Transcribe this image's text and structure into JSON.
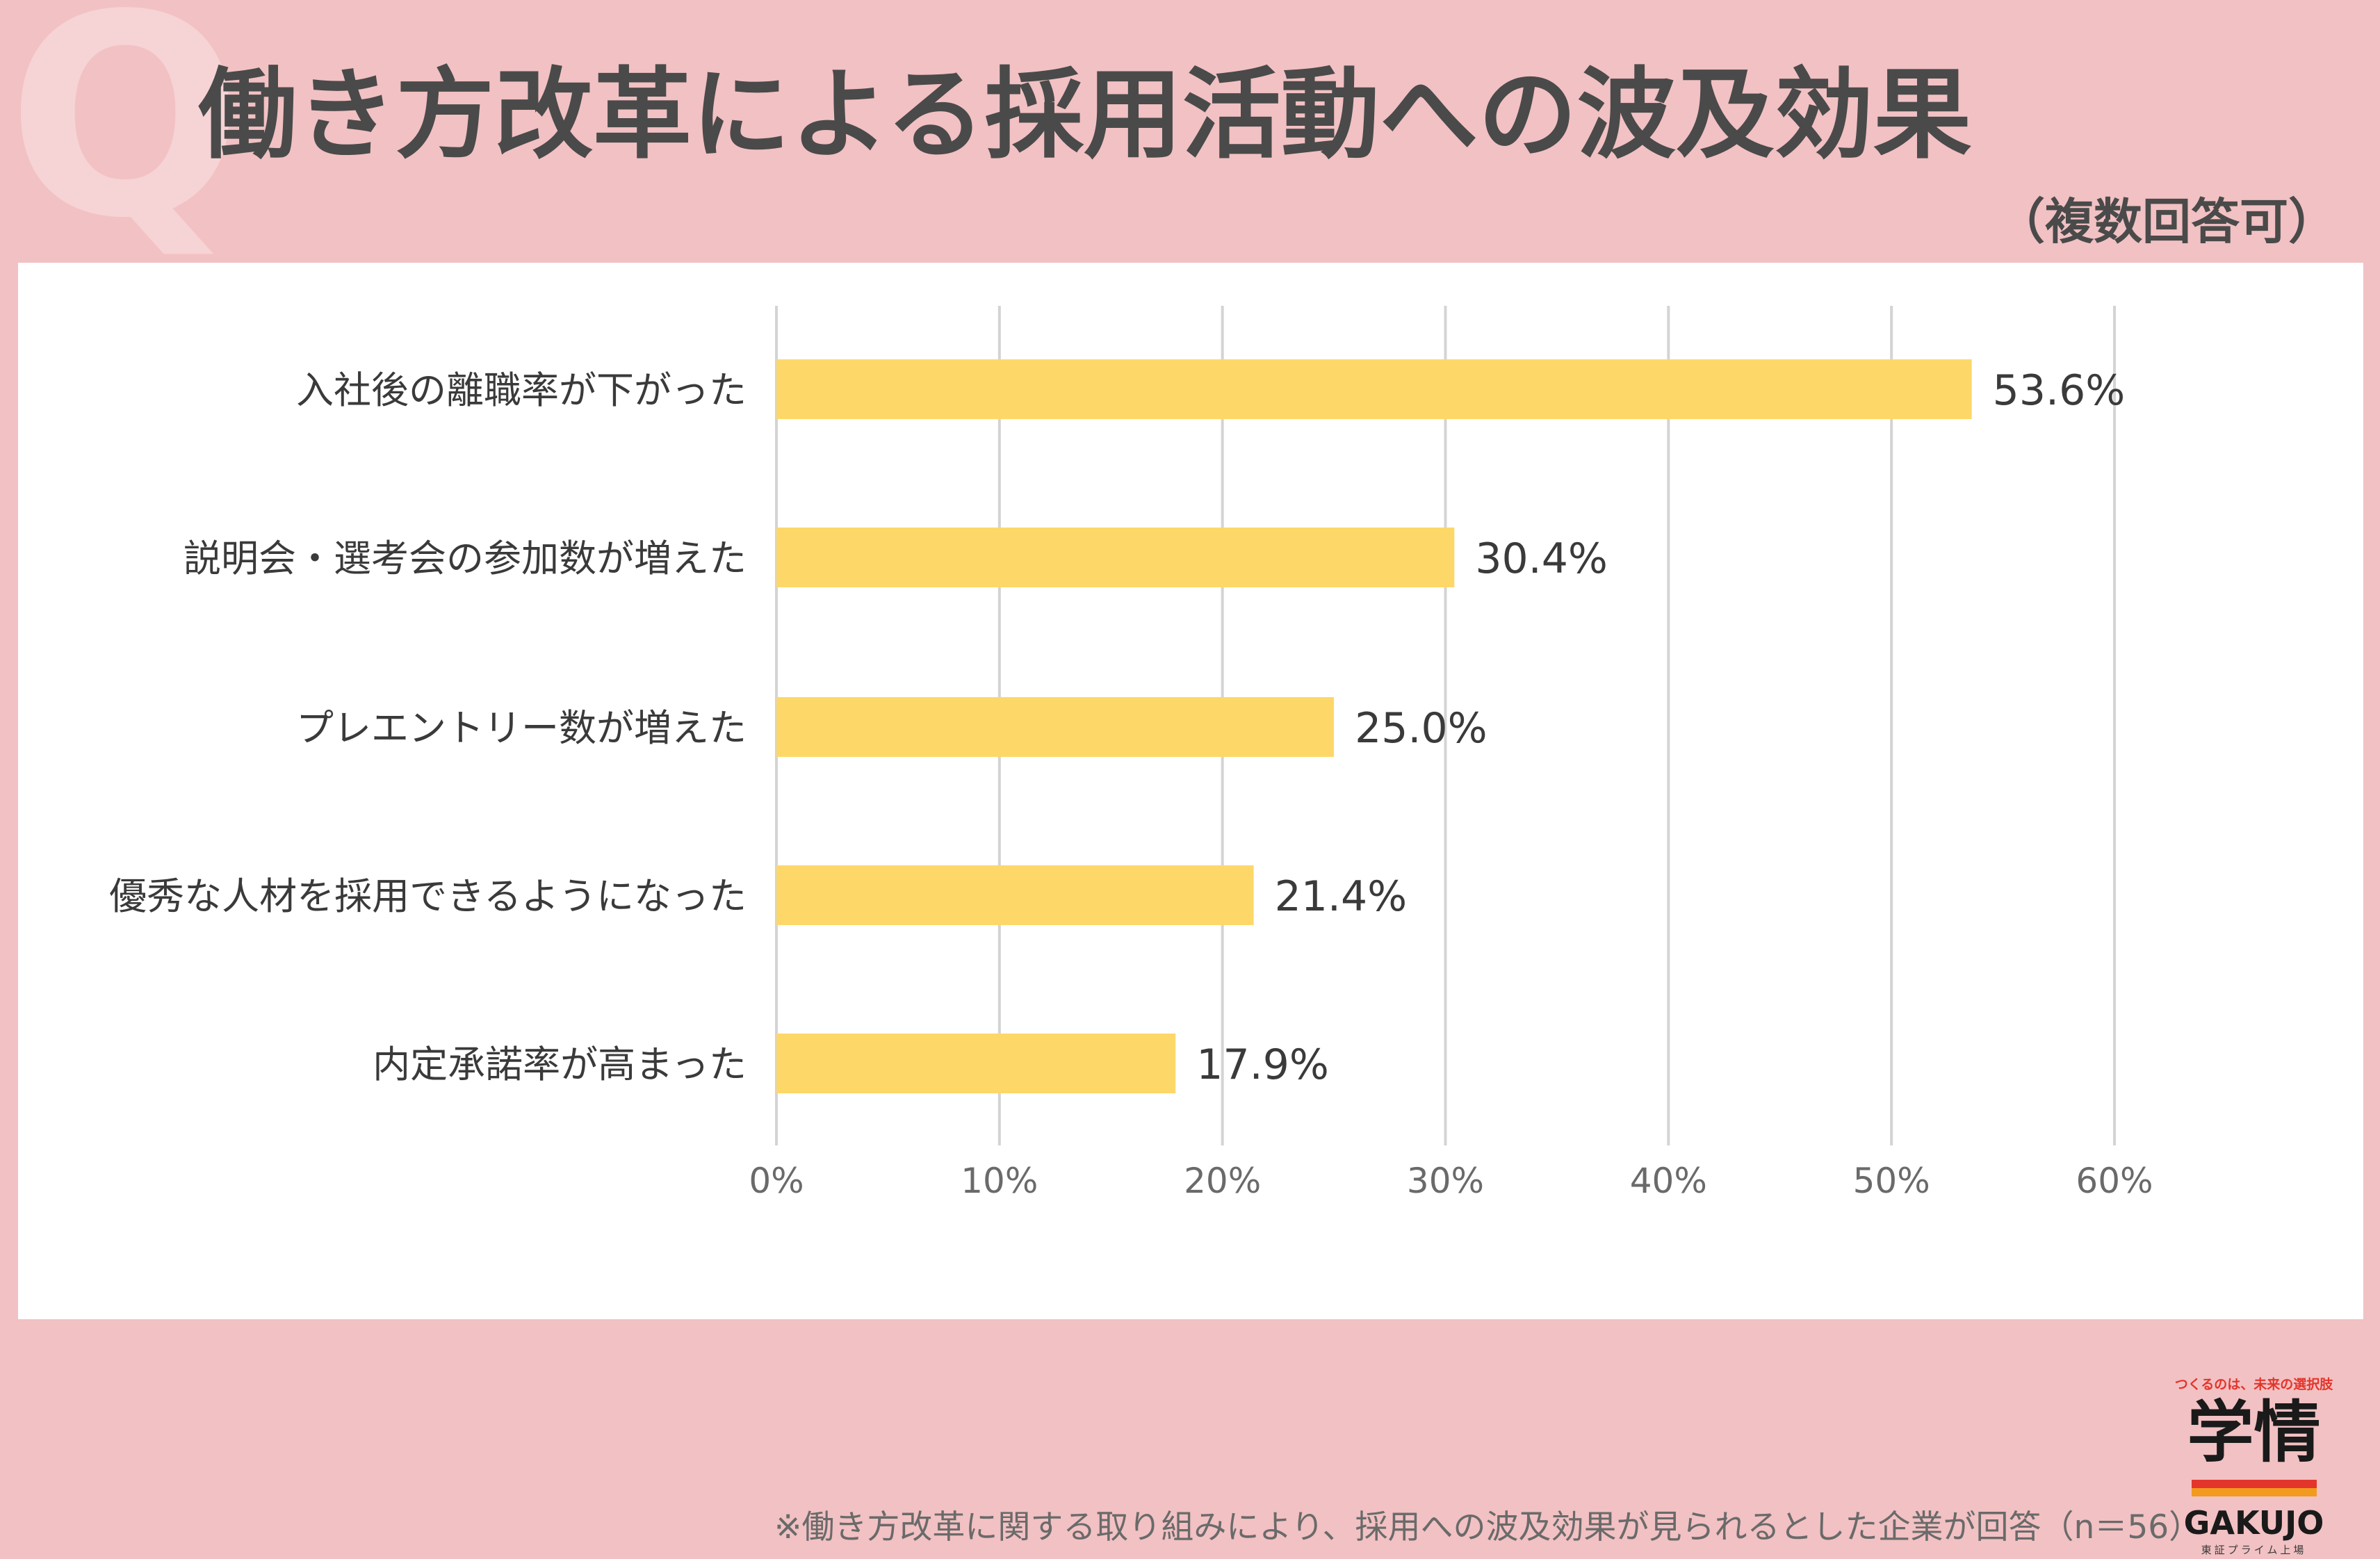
{
  "header": {
    "q_mark": "Q",
    "title": "働き方改革による採用活動への波及効果",
    "subtitle": "（複数回答可）"
  },
  "chart_data": {
    "type": "bar",
    "orientation": "horizontal",
    "categories": [
      "入社後の離職率が下がった",
      "説明会・選考会の参加数が増えた",
      "プレエントリー数が増えた",
      "優秀な人材を採用できるようになった",
      "内定承諾率が高まった"
    ],
    "values": [
      53.6,
      30.4,
      25.0,
      21.4,
      17.9
    ],
    "value_labels": [
      "53.6%",
      "30.4%",
      "25.0%",
      "21.4%",
      "17.9%"
    ],
    "xlim": [
      0,
      60
    ],
    "ticks": [
      0,
      10,
      20,
      30,
      40,
      50,
      60
    ],
    "tick_labels": [
      "0%",
      "10%",
      "20%",
      "30%",
      "40%",
      "50%",
      "60%"
    ],
    "grid": "vertical",
    "bar_color": "#fdd869",
    "grid_color": "#d4d4d4"
  },
  "footnote": "※働き方改革に関する取り組みにより、採用への波及効果が見られるとした企業が回答（n＝56）",
  "logo": {
    "tagline": "つくるのは、未来の選択肢",
    "kanji": "学情",
    "roman": "GAKUJO",
    "listing": "東証プライム上場",
    "red": "#e3352b",
    "orange": "#f29a1f"
  }
}
